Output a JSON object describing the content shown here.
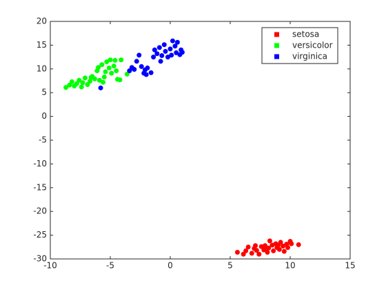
{
  "chart_data": {
    "type": "scatter",
    "xlim": [
      -10,
      15
    ],
    "xticks": [
      -10,
      -5,
      0,
      5,
      10,
      15
    ],
    "ylim": [
      -30,
      20
    ],
    "yticks": [
      -30,
      -25,
      -20,
      -15,
      -10,
      -5,
      0,
      5,
      10,
      15,
      20
    ],
    "legend": "northeast",
    "series": [
      {
        "name": "setosa",
        "color": "#ff0000",
        "x": [
          5.6,
          6.1,
          6.3,
          6.5,
          6.8,
          7.0,
          7.2,
          7.4,
          7.6,
          7.8,
          7.9,
          8.1,
          8.2,
          8.3,
          8.5,
          8.6,
          8.8,
          8.9,
          9.1,
          9.2,
          9.4,
          9.5,
          9.7,
          9.8,
          10.0,
          10.1,
          10.7,
          7.1,
          8.0,
          9.0
        ],
        "y": [
          -28.6,
          -29,
          -28.3,
          -27.5,
          -28.8,
          -27.8,
          -28.2,
          -29,
          -27.4,
          -28.1,
          -27.2,
          -28.6,
          -27.7,
          -26.2,
          -27.1,
          -28.3,
          -26.8,
          -27.6,
          -28,
          -26.5,
          -27.3,
          -28.4,
          -26.9,
          -27.6,
          -26.3,
          -26.8,
          -27,
          -27.2,
          -27.9,
          -27.1
        ]
      },
      {
        "name": "versicolor",
        "color": "#00ff00",
        "x": [
          -8.7,
          -8.4,
          -8.2,
          -8.0,
          -7.8,
          -7.6,
          -7.4,
          -7.3,
          -7.1,
          -6.9,
          -6.7,
          -6.5,
          -6.3,
          -6.1,
          -6.0,
          -5.9,
          -5.7,
          -5.6,
          -5.4,
          -5.3,
          -5.1,
          -5.0,
          -4.9,
          -4.7,
          -4.6,
          -4.5,
          -4.4,
          -4.2,
          -4.1,
          -3.6,
          -5.5,
          -6.6
        ],
        "y": [
          6.1,
          6.6,
          7.3,
          6.4,
          6.9,
          7.6,
          6.2,
          7.1,
          8.1,
          6.7,
          7.4,
          8.4,
          7.9,
          9.6,
          10.3,
          7.6,
          10.9,
          7.2,
          9.4,
          11.5,
          10.2,
          11.9,
          9.1,
          10.6,
          11.8,
          9.6,
          7.8,
          7.7,
          11.9,
          8.9,
          8.3,
          8.2
        ]
      },
      {
        "name": "virginica",
        "color": "#0000ff",
        "x": [
          -5.8,
          -3.4,
          -3.2,
          -3.0,
          -2.8,
          -2.6,
          -2.4,
          -2.2,
          -2.0,
          -1.9,
          -1.6,
          -1.4,
          -1.3,
          -1.1,
          -0.9,
          -0.7,
          -0.5,
          -0.4,
          -0.2,
          0.0,
          0.1,
          0.2,
          0.4,
          0.5,
          0.6,
          0.8,
          0.9,
          1.0,
          -0.8,
          -2.1
        ],
        "y": [
          6,
          9.6,
          10.3,
          9.9,
          11.6,
          12.9,
          10.5,
          9.1,
          8.8,
          10.2,
          9.2,
          12.5,
          14,
          13.2,
          14.5,
          12.8,
          15.1,
          13.7,
          12.5,
          14.2,
          12.9,
          15.9,
          14.8,
          13.4,
          15.6,
          13,
          14,
          13.5,
          11.6,
          9.8
        ]
      }
    ]
  }
}
